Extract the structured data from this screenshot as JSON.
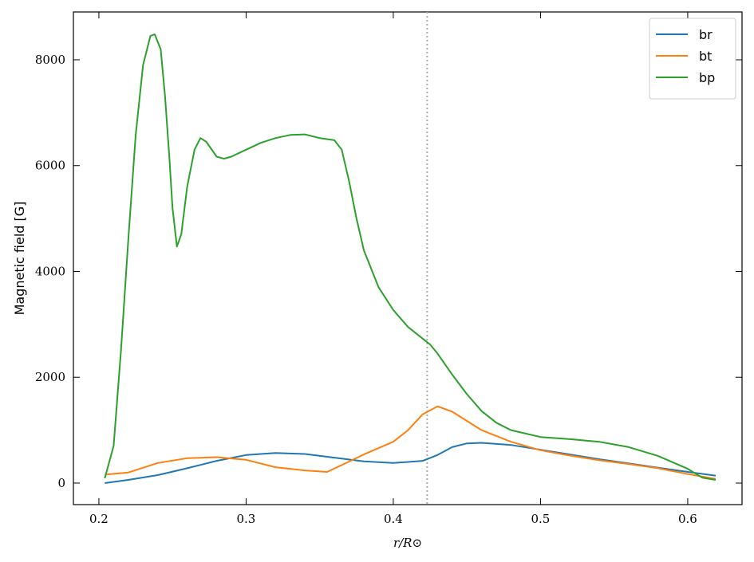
{
  "chart_data": {
    "type": "line",
    "xlabel": "r/R⊙",
    "ylabel": "Magnetic field [G]",
    "xlim": [
      0.1827,
      0.6369
    ],
    "ylim": [
      -407,
      8904
    ],
    "xticks": [
      0.2,
      0.3,
      0.4,
      0.5,
      0.6
    ],
    "yticks": [
      0,
      2000,
      4000,
      6000,
      8000
    ],
    "vline": 0.423,
    "vline_color": "#aaaaaa",
    "legend": "upper right",
    "series": [
      {
        "name": "br",
        "color": "#1f77b4",
        "x": [
          0.204,
          0.22,
          0.24,
          0.26,
          0.28,
          0.3,
          0.32,
          0.34,
          0.36,
          0.38,
          0.4,
          0.42,
          0.43,
          0.44,
          0.45,
          0.46,
          0.48,
          0.5,
          0.52,
          0.54,
          0.56,
          0.58,
          0.6,
          0.619
        ],
        "values": [
          0,
          60,
          150,
          280,
          420,
          530,
          570,
          550,
          480,
          410,
          380,
          420,
          530,
          680,
          750,
          760,
          720,
          630,
          540,
          450,
          370,
          290,
          210,
          140
        ]
      },
      {
        "name": "bt",
        "color": "#ff7f0e",
        "x": [
          0.204,
          0.22,
          0.24,
          0.26,
          0.28,
          0.3,
          0.32,
          0.34,
          0.355,
          0.365,
          0.38,
          0.4,
          0.41,
          0.42,
          0.43,
          0.44,
          0.46,
          0.48,
          0.5,
          0.52,
          0.54,
          0.56,
          0.58,
          0.6,
          0.619
        ],
        "values": [
          160,
          200,
          380,
          470,
          490,
          440,
          300,
          240,
          210,
          340,
          540,
          780,
          1000,
          1300,
          1450,
          1350,
          1000,
          780,
          620,
          520,
          430,
          360,
          280,
          170,
          80
        ]
      },
      {
        "name": "bp",
        "color": "#2ca02c",
        "x": [
          0.204,
          0.21,
          0.215,
          0.22,
          0.225,
          0.23,
          0.235,
          0.238,
          0.242,
          0.245,
          0.248,
          0.25,
          0.253,
          0.256,
          0.26,
          0.265,
          0.269,
          0.273,
          0.28,
          0.285,
          0.29,
          0.3,
          0.31,
          0.32,
          0.33,
          0.34,
          0.35,
          0.36,
          0.365,
          0.37,
          0.375,
          0.38,
          0.39,
          0.4,
          0.41,
          0.42,
          0.425,
          0.43,
          0.44,
          0.45,
          0.46,
          0.47,
          0.48,
          0.5,
          0.52,
          0.54,
          0.56,
          0.58,
          0.6,
          0.61,
          0.619
        ],
        "values": [
          90,
          700,
          2500,
          4600,
          6570,
          7900,
          8450,
          8480,
          8200,
          7300,
          6100,
          5200,
          4470,
          4700,
          5600,
          6300,
          6520,
          6450,
          6170,
          6130,
          6170,
          6300,
          6430,
          6520,
          6580,
          6590,
          6520,
          6480,
          6300,
          5700,
          5000,
          4400,
          3700,
          3270,
          2950,
          2730,
          2620,
          2450,
          2050,
          1680,
          1360,
          1140,
          1000,
          870,
          830,
          780,
          680,
          510,
          270,
          100,
          60
        ]
      }
    ]
  }
}
